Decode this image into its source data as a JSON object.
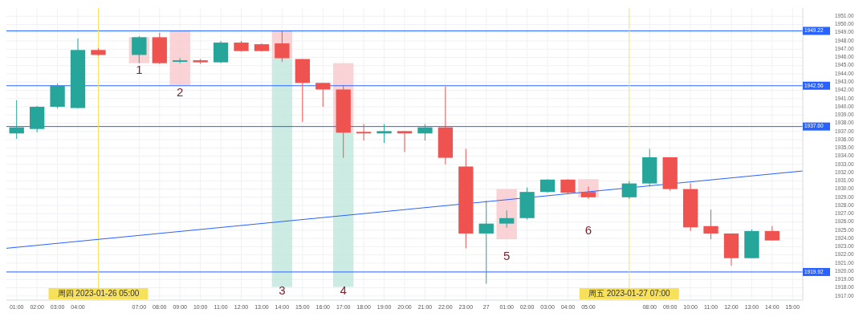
{
  "chart_data": {
    "type": "candlestick",
    "x": [
      "2023-01-26T01:00",
      "2023-01-26T02:00",
      "2023-01-26T03:00",
      "2023-01-26T04:00",
      "2023-01-26T05:00",
      "2023-01-26T07:00",
      "2023-01-26T08:00",
      "2023-01-26T09:00",
      "2023-01-26T10:00",
      "2023-01-26T11:00",
      "2023-01-26T12:00",
      "2023-01-26T13:00",
      "2023-01-26T14:00",
      "2023-01-26T15:00",
      "2023-01-26T16:00",
      "2023-01-26T17:00",
      "2023-01-26T18:00",
      "2023-01-26T19:00",
      "2023-01-26T20:00",
      "2023-01-26T21:00",
      "2023-01-26T22:00",
      "2023-01-26T23:00",
      "2023-01-27T00:00",
      "2023-01-27T01:00",
      "2023-01-27T02:00",
      "2023-01-27T03:00",
      "2023-01-27T04:00",
      "2023-01-27T05:00",
      "2023-01-27T07:00",
      "2023-01-27T08:00",
      "2023-01-27T09:00",
      "2023-01-27T10:00",
      "2023-01-27T11:00",
      "2023-01-27T12:00",
      "2023-01-27T13:00",
      "2023-01-27T14:00"
    ],
    "ohlc": [
      [
        1936.76,
        1940.8,
        1936.1,
        1937.5
      ],
      [
        1937.3,
        1940.1,
        1936.9,
        1940.0
      ],
      [
        1940.0,
        1942.8,
        1939.8,
        1942.56
      ],
      [
        1939.85,
        1948.3,
        1939.8,
        1946.9
      ],
      [
        1946.9,
        1947.1,
        1946.2,
        1946.3
      ],
      [
        1946.3,
        1948.6,
        1945.3,
        1948.45
      ],
      [
        1948.45,
        1949.0,
        1945.2,
        1945.3
      ],
      [
        1945.46,
        1945.9,
        1945.3,
        1945.65
      ],
      [
        1945.65,
        1945.8,
        1945.2,
        1945.4
      ],
      [
        1945.4,
        1948.0,
        1945.3,
        1947.8
      ],
      [
        1947.8,
        1948.0,
        1946.7,
        1946.77
      ],
      [
        1947.6,
        1947.7,
        1946.7,
        1946.77
      ],
      [
        1947.7,
        1949.2,
        1945.45,
        1945.9
      ],
      [
        1945.8,
        1945.8,
        1938.16,
        1942.9
      ],
      [
        1942.9,
        1942.9,
        1940.0,
        1942.1
      ],
      [
        1942.1,
        1942.65,
        1933.8,
        1936.85
      ],
      [
        1936.95,
        1937.9,
        1935.9,
        1936.76
      ],
      [
        1936.76,
        1937.9,
        1935.6,
        1937.04
      ],
      [
        1937.04,
        1937.04,
        1934.5,
        1936.76
      ],
      [
        1936.76,
        1937.9,
        1935.9,
        1937.5
      ],
      [
        1937.5,
        1942.46,
        1933.0,
        1933.8
      ],
      [
        1932.74,
        1934.9,
        1922.8,
        1924.6
      ],
      [
        1924.6,
        1928.6,
        1918.5,
        1925.8
      ],
      [
        1925.8,
        1927.4,
        1925.3,
        1926.47
      ],
      [
        1926.47,
        1930.2,
        1926.3,
        1929.65
      ],
      [
        1929.65,
        1931.2,
        1929.55,
        1931.15
      ],
      [
        1931.15,
        1931.2,
        1929.4,
        1929.55
      ],
      [
        1929.65,
        1930.3,
        1928.8,
        1929.0
      ],
      [
        1929.0,
        1930.95,
        1928.8,
        1930.68
      ],
      [
        1930.68,
        1934.9,
        1930.3,
        1933.86
      ],
      [
        1933.86,
        1933.86,
        1929.8,
        1930.0
      ],
      [
        1930.0,
        1930.7,
        1924.9,
        1925.35
      ],
      [
        1925.5,
        1927.5,
        1923.9,
        1924.6
      ],
      [
        1924.6,
        1924.6,
        1920.7,
        1921.6
      ],
      [
        1921.6,
        1925.1,
        1921.6,
        1924.9
      ],
      [
        1924.9,
        1925.5,
        1923.75,
        1923.75
      ]
    ],
    "colors": [
      "#26a69a",
      "#26a69a",
      "#26a69a",
      "#26a69a",
      "#ef5350",
      "#26a69a",
      "#ef5350",
      "#26a69a",
      "#ef5350",
      "#26a69a",
      "#ef5350",
      "#ef5350",
      "#ef5350",
      "#ef5350",
      "#ef5350",
      "#ef5350",
      "#ef5350",
      "#26a69a",
      "#ef5350",
      "#26a69a",
      "#ef5350",
      "#ef5350",
      "#26a69a",
      "#26a69a",
      "#26a69a",
      "#26a69a",
      "#ef5350",
      "#ef5350",
      "#26a69a",
      "#26a69a",
      "#ef5350",
      "#ef5350",
      "#ef5350",
      "#ef5350",
      "#26a69a",
      "#ef5350"
    ],
    "series": [
      {
        "type": "line",
        "color": "#2962ff",
        "x": [
          "2023-01-26T00:30",
          "2023-01-27T15:30"
        ],
        "values": [
          1922.8,
          1932.2
        ]
      }
    ],
    "xlim": [
      "2023-01-26T00:30",
      "2023-01-27T15:30"
    ],
    "xticks": [
      {
        "value": "2023-01-26T01:00",
        "label": "01:00"
      },
      {
        "value": "2023-01-26T02:00",
        "label": "02:00"
      },
      {
        "value": "2023-01-26T03:00",
        "label": "03:00"
      },
      {
        "value": "2023-01-26T04:00",
        "label": "04:00"
      },
      {
        "value": "2023-01-26T07:00",
        "label": "07:00"
      },
      {
        "value": "2023-01-26T08:00",
        "label": "08:00"
      },
      {
        "value": "2023-01-26T09:00",
        "label": "09:00"
      },
      {
        "value": "2023-01-26T10:00",
        "label": "10:00"
      },
      {
        "value": "2023-01-26T11:00",
        "label": "11:00"
      },
      {
        "value": "2023-01-26T12:00",
        "label": "12:00"
      },
      {
        "value": "2023-01-26T13:00",
        "label": "13:00"
      },
      {
        "value": "2023-01-26T14:00",
        "label": "14:00"
      },
      {
        "value": "2023-01-26T15:00",
        "label": "15:00"
      },
      {
        "value": "2023-01-26T16:00",
        "label": "16:00"
      },
      {
        "value": "2023-01-26T17:00",
        "label": "17:00"
      },
      {
        "value": "2023-01-26T18:00",
        "label": "18:00"
      },
      {
        "value": "2023-01-26T19:00",
        "label": "19:00"
      },
      {
        "value": "2023-01-26T20:00",
        "label": "20:00"
      },
      {
        "value": "2023-01-26T21:00",
        "label": "21:00"
      },
      {
        "value": "2023-01-26T22:00",
        "label": "22:00"
      },
      {
        "value": "2023-01-26T23:00",
        "label": "23:00"
      },
      {
        "value": "2023-01-27T00:00",
        "label": "27"
      },
      {
        "value": "2023-01-27T01:00",
        "label": "01:00"
      },
      {
        "value": "2023-01-27T02:00",
        "label": "02:00"
      },
      {
        "value": "2023-01-27T03:00",
        "label": "03:00"
      },
      {
        "value": "2023-01-27T04:00",
        "label": "04:00"
      },
      {
        "value": "2023-01-27T05:00",
        "label": "05:00"
      },
      {
        "value": "2023-01-27T08:00",
        "label": "08:00"
      },
      {
        "value": "2023-01-27T09:00",
        "label": "09:00"
      },
      {
        "value": "2023-01-27T10:00",
        "label": "10:00"
      },
      {
        "value": "2023-01-27T11:00",
        "label": "11:00"
      },
      {
        "value": "2023-01-27T12:00",
        "label": "12:00"
      },
      {
        "value": "2023-01-27T13:00",
        "label": "13:00"
      },
      {
        "value": "2023-01-27T14:00",
        "label": "14:00"
      },
      {
        "value": "2023-01-27T15:00",
        "label": "15:00"
      }
    ],
    "ylim": [
      1916.5,
      1952
    ],
    "yticks": [
      {
        "value": 1917,
        "label": "1917.00"
      },
      {
        "value": 1918,
        "label": "1918.00"
      },
      {
        "value": 1919,
        "label": "1919.00"
      },
      {
        "value": 1920,
        "label": "1920.00"
      },
      {
        "value": 1921,
        "label": "1921.00"
      },
      {
        "value": 1922,
        "label": "1922.00"
      },
      {
        "value": 1923,
        "label": "1923.00"
      },
      {
        "value": 1924,
        "label": "1924.00"
      },
      {
        "value": 1925,
        "label": "1925.00"
      },
      {
        "value": 1926,
        "label": "1926.00"
      },
      {
        "value": 1927,
        "label": "1927.00"
      },
      {
        "value": 1928,
        "label": "1928.00"
      },
      {
        "value": 1929,
        "label": "1929.00"
      },
      {
        "value": 1930,
        "label": "1930.00"
      },
      {
        "value": 1931,
        "label": "1931.00"
      },
      {
        "value": 1932,
        "label": "1932.00"
      },
      {
        "value": 1933,
        "label": "1933.00"
      },
      {
        "value": 1934,
        "label": "1934.00"
      },
      {
        "value": 1935,
        "label": "1935.00"
      },
      {
        "value": 1936,
        "label": "1936.00"
      },
      {
        "value": 1937,
        "label": "1937.00"
      },
      {
        "value": 1938,
        "label": "1938.00"
      },
      {
        "value": 1939,
        "label": "1939.00"
      },
      {
        "value": 1940,
        "label": "1940.00"
      },
      {
        "value": 1941,
        "label": "1941.00"
      },
      {
        "value": 1942,
        "label": "1942.00"
      },
      {
        "value": 1943,
        "label": "1943.00"
      },
      {
        "value": 1944,
        "label": "1944.00"
      },
      {
        "value": 1945,
        "label": "1945.00"
      },
      {
        "value": 1946,
        "label": "1946.00"
      },
      {
        "value": 1947,
        "label": "1947.00"
      },
      {
        "value": 1948,
        "label": "1948.00"
      },
      {
        "value": 1949,
        "label": "1949.00"
      },
      {
        "value": 1950,
        "label": "1950.00"
      },
      {
        "value": 1951,
        "label": "1951.00"
      }
    ],
    "grid": true,
    "ref_lines": [
      {
        "axis": "y",
        "value": 1949.22,
        "label": "1949.22",
        "color": "#2962ff"
      },
      {
        "axis": "y",
        "value": 1942.56,
        "label": "1942.56",
        "color": "#2962ff"
      },
      {
        "axis": "y",
        "value": 1937.6,
        "label": "1937.60",
        "color": "#2962ff"
      },
      {
        "axis": "y",
        "value": 1919.92,
        "label": "1919.92",
        "color": "#2962ff"
      },
      {
        "axis": "x",
        "value": "2023-01-26T05:00",
        "label": "周四 2023-01-26 05:00",
        "color": "#f7e15a"
      },
      {
        "axis": "x",
        "value": "2023-01-27T07:00",
        "label": "周五 2023-01-27 07:00",
        "color": "#f7e15a"
      }
    ],
    "annotations": [
      "1",
      "2",
      "3",
      "4",
      "5",
      "6"
    ]
  }
}
